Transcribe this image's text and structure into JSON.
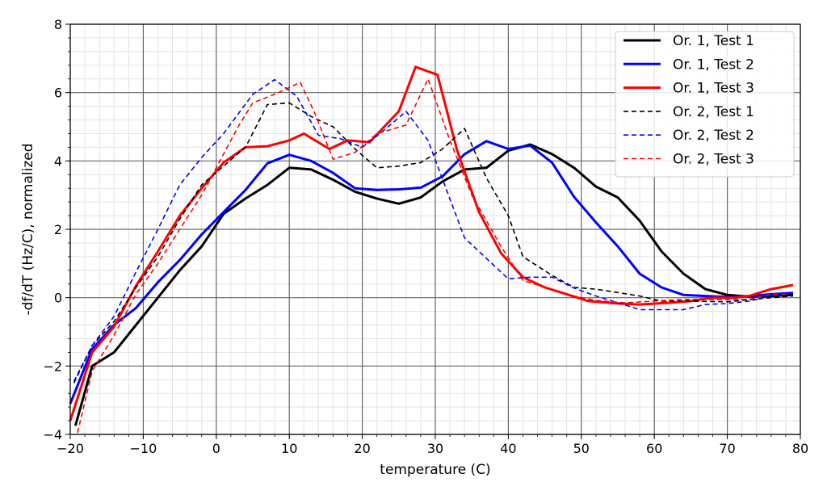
{
  "chart_data": {
    "type": "line",
    "title": "",
    "xlabel": "temperature (C)",
    "ylabel": "-df/dT (Hz/C), normalized",
    "xlim": [
      -20,
      80
    ],
    "ylim": [
      -4,
      8
    ],
    "xticks": [
      "−20",
      "−10",
      "0",
      "10",
      "20",
      "30",
      "40",
      "50",
      "60",
      "70",
      "80"
    ],
    "yticks": [
      "−4",
      "−2",
      "0",
      "2",
      "4",
      "6",
      "8"
    ],
    "grid": {
      "major": true,
      "minor": true
    },
    "legend_position": "top-right",
    "series": [
      {
        "name": "Or. 1, Test 1",
        "color": "#000000",
        "style": "solid",
        "x": [
          -19.3,
          -17,
          -14,
          -11,
          -8,
          -5,
          -2,
          1,
          4,
          7,
          10,
          13,
          16,
          19,
          22,
          25,
          28,
          31,
          34,
          37,
          40,
          43,
          46,
          49,
          52,
          55,
          58,
          61,
          64,
          67,
          70,
          73,
          76,
          79
        ],
        "y": [
          -3.75,
          -2.0,
          -1.6,
          -0.8,
          0,
          0.8,
          1.5,
          2.45,
          2.9,
          3.3,
          3.8,
          3.75,
          3.45,
          3.1,
          2.9,
          2.75,
          2.93,
          3.4,
          3.75,
          3.8,
          4.3,
          4.48,
          4.2,
          3.8,
          3.25,
          2.93,
          2.25,
          1.35,
          0.7,
          0.25,
          0.08,
          0.03,
          0.05,
          0.08
        ]
      },
      {
        "name": "Or. 1, Test 2",
        "color": "#0000ff",
        "style": "solid",
        "x": [
          -20,
          -17,
          -14,
          -11,
          -8,
          -5,
          -2,
          1,
          4,
          7,
          10,
          13,
          16,
          19,
          22,
          25,
          28,
          31,
          34,
          37,
          40,
          43,
          46,
          49,
          52,
          55,
          58,
          61,
          64,
          67,
          70,
          73,
          76,
          79
        ],
        "y": [
          -3.1,
          -1.5,
          -0.8,
          -0.3,
          0.45,
          1.1,
          1.85,
          2.5,
          3.15,
          3.93,
          4.18,
          4.0,
          3.65,
          3.2,
          3.15,
          3.17,
          3.22,
          3.55,
          4.2,
          4.58,
          4.35,
          4.45,
          3.95,
          2.95,
          2.2,
          1.5,
          0.7,
          0.3,
          0.08,
          0.05,
          0.02,
          0.05,
          0.1,
          0.14
        ]
      },
      {
        "name": "Or. 1, Test 3",
        "color": "#ff0000",
        "style": "solid",
        "x": [
          -20,
          -17,
          -14,
          -11,
          -8,
          -5,
          -2,
          1,
          4,
          7,
          10,
          12,
          15.5,
          18,
          21,
          25,
          27.3,
          30.3,
          33,
          36,
          39,
          42,
          45,
          48,
          51,
          55,
          58,
          62,
          65,
          68,
          71,
          73,
          76,
          79
        ],
        "y": [
          -3.6,
          -1.6,
          -0.85,
          0.35,
          1.35,
          2.4,
          3.2,
          3.95,
          4.4,
          4.43,
          4.6,
          4.8,
          4.35,
          4.6,
          4.55,
          5.45,
          6.75,
          6.52,
          4.3,
          2.5,
          1.3,
          0.6,
          0.3,
          0.1,
          -0.1,
          -0.17,
          -0.2,
          -0.15,
          -0.1,
          0.0,
          0.0,
          0.05,
          0.25,
          0.37
        ]
      },
      {
        "name": "Or. 2, Test 1",
        "color": "#000000",
        "style": "dashed",
        "x": [
          -19.5,
          -17,
          -14,
          -11,
          -8,
          -5,
          -2,
          1,
          4,
          7,
          10,
          13,
          16,
          19,
          22,
          25,
          28,
          31,
          34,
          37,
          40,
          42,
          46,
          49,
          52,
          55,
          58,
          61,
          64,
          70,
          76,
          79
        ],
        "y": [
          -2.5,
          -1.4,
          -0.7,
          0.3,
          1.2,
          2.3,
          3.3,
          3.85,
          4.4,
          5.65,
          5.7,
          5.3,
          5.0,
          4.35,
          3.8,
          3.85,
          3.95,
          4.35,
          4.95,
          3.5,
          2.4,
          1.2,
          0.65,
          0.3,
          0.25,
          0.15,
          0.05,
          -0.1,
          -0.1,
          -0.12,
          0.0,
          0.05
        ]
      },
      {
        "name": "Or. 2, Test 2",
        "color": "#0000ff",
        "style": "dashed",
        "x": [
          -19.5,
          -17,
          -14,
          -11,
          -8,
          -5,
          -2,
          1,
          5,
          8,
          11,
          14,
          17,
          20,
          23,
          26,
          29,
          34,
          37,
          40,
          43,
          46,
          49,
          52,
          55,
          58,
          61,
          64,
          67,
          70,
          73,
          76,
          79
        ],
        "y": [
          -2.45,
          -1.4,
          -0.55,
          0.75,
          2.0,
          3.3,
          4.1,
          4.8,
          5.95,
          6.38,
          5.9,
          4.75,
          4.65,
          4.4,
          4.9,
          5.45,
          4.6,
          1.75,
          1.15,
          0.55,
          0.6,
          0.6,
          0.28,
          0.05,
          -0.15,
          -0.35,
          -0.35,
          -0.35,
          -0.2,
          -0.17,
          -0.1,
          0.05,
          0.15
        ]
      },
      {
        "name": "Or. 2, Test 3",
        "color": "#ff0000",
        "style": "dashed",
        "x": [
          -19,
          -17,
          -14,
          -11,
          -8,
          -5,
          -2,
          1,
          3,
          5,
          8,
          11.5,
          13.5,
          16,
          19,
          22,
          26,
          29,
          32,
          35,
          39,
          42,
          46,
          49,
          52,
          56,
          60,
          64,
          70,
          73,
          76,
          78
        ],
        "y": [
          -3.95,
          -2.15,
          -1.1,
          0.1,
          1.0,
          2.0,
          3.0,
          4.2,
          5.0,
          5.7,
          5.95,
          6.3,
          5.4,
          4.05,
          4.25,
          4.8,
          5.05,
          6.4,
          4.6,
          3.0,
          1.5,
          0.5,
          0.25,
          0.05,
          -0.08,
          -0.15,
          -0.1,
          -0.05,
          -0.05,
          -0.05,
          0.1,
          0.1
        ]
      }
    ]
  }
}
